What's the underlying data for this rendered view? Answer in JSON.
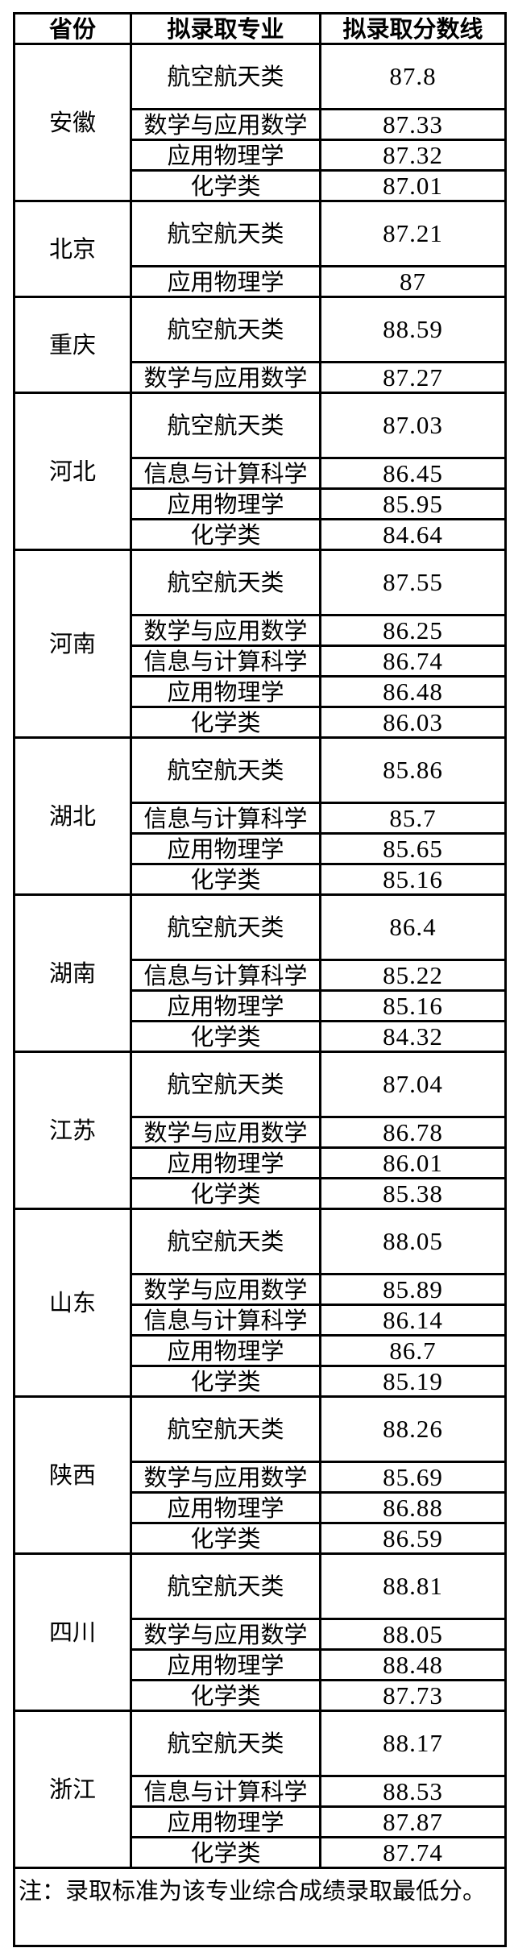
{
  "header": {
    "province": "省份",
    "major": "拟录取专业",
    "score": "拟录取分数线"
  },
  "groups": [
    {
      "province": "安徽",
      "rows": [
        [
          "航空航天类",
          "87.8"
        ],
        [
          "数学与应用数学",
          "87.33"
        ],
        [
          "应用物理学",
          "87.32"
        ],
        [
          "化学类",
          "87.01"
        ]
      ]
    },
    {
      "province": "北京",
      "rows": [
        [
          "航空航天类",
          "87.21"
        ],
        [
          "应用物理学",
          "87"
        ]
      ]
    },
    {
      "province": "重庆",
      "rows": [
        [
          "航空航天类",
          "88.59"
        ],
        [
          "数学与应用数学",
          "87.27"
        ]
      ]
    },
    {
      "province": "河北",
      "rows": [
        [
          "航空航天类",
          "87.03"
        ],
        [
          "信息与计算科学",
          "86.45"
        ],
        [
          "应用物理学",
          "85.95"
        ],
        [
          "化学类",
          "84.64"
        ]
      ]
    },
    {
      "province": "河南",
      "rows": [
        [
          "航空航天类",
          "87.55"
        ],
        [
          "数学与应用数学",
          "86.25"
        ],
        [
          "信息与计算科学",
          "86.74"
        ],
        [
          "应用物理学",
          "86.48"
        ],
        [
          "化学类",
          "86.03"
        ]
      ]
    },
    {
      "province": "湖北",
      "rows": [
        [
          "航空航天类",
          "85.86"
        ],
        [
          "信息与计算科学",
          "85.7"
        ],
        [
          "应用物理学",
          "85.65"
        ],
        [
          "化学类",
          "85.16"
        ]
      ]
    },
    {
      "province": "湖南",
      "rows": [
        [
          "航空航天类",
          "86.4"
        ],
        [
          "信息与计算科学",
          "85.22"
        ],
        [
          "应用物理学",
          "85.16"
        ],
        [
          "化学类",
          "84.32"
        ]
      ]
    },
    {
      "province": "江苏",
      "rows": [
        [
          "航空航天类",
          "87.04"
        ],
        [
          "数学与应用数学",
          "86.78"
        ],
        [
          "应用物理学",
          "86.01"
        ],
        [
          "化学类",
          "85.38"
        ]
      ]
    },
    {
      "province": "山东",
      "rows": [
        [
          "航空航天类",
          "88.05"
        ],
        [
          "数学与应用数学",
          "85.89"
        ],
        [
          "信息与计算科学",
          "86.14"
        ],
        [
          "应用物理学",
          "86.7"
        ],
        [
          "化学类",
          "85.19"
        ]
      ]
    },
    {
      "province": "陕西",
      "rows": [
        [
          "航空航天类",
          "88.26"
        ],
        [
          "数学与应用数学",
          "85.69"
        ],
        [
          "应用物理学",
          "86.88"
        ],
        [
          "化学类",
          "86.59"
        ]
      ]
    },
    {
      "province": "四川",
      "rows": [
        [
          "航空航天类",
          "88.81"
        ],
        [
          "数学与应用数学",
          "88.05"
        ],
        [
          "应用物理学",
          "88.48"
        ],
        [
          "化学类",
          "87.73"
        ]
      ]
    },
    {
      "province": "浙江",
      "rows": [
        [
          "航空航天类",
          "88.17"
        ],
        [
          "信息与计算科学",
          "88.53"
        ],
        [
          "应用物理学",
          "87.87"
        ],
        [
          "化学类",
          "87.74"
        ]
      ]
    }
  ],
  "note": "注：录取标准为该专业综合成绩录取最低分。"
}
